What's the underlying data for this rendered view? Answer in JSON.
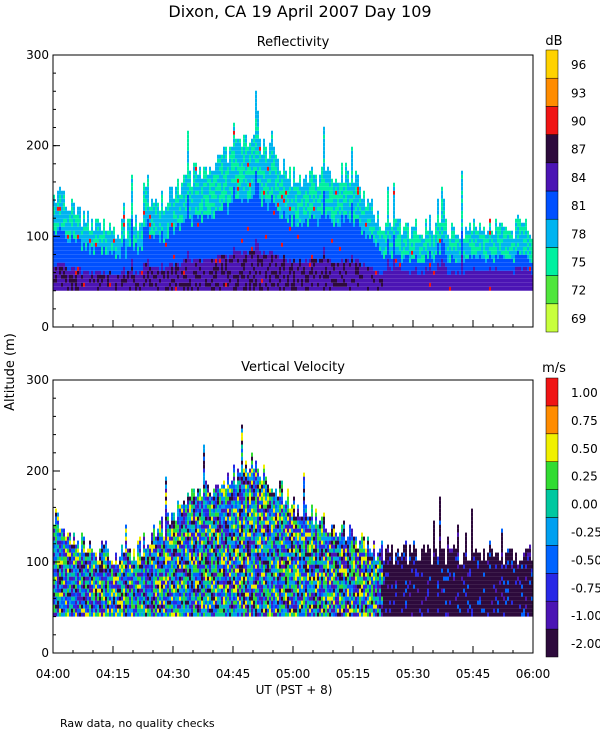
{
  "figure": {
    "title": "Dixon, CA 19 April 2007  Day 109",
    "xlabel": "UT  (PST + 8)",
    "ylabel": "Altitude (m)",
    "footnote": "Raw data, no quality checks"
  },
  "chart_data": [
    {
      "type": "heatmap",
      "title": "Reflectivity",
      "xlabel": "UT  (PST + 8)",
      "ylabel": "Altitude (m)",
      "x_ticks": [
        "04:00",
        "04:15",
        "04:30",
        "04:45",
        "05:00",
        "05:15",
        "05:30",
        "05:45",
        "06:00"
      ],
      "xlim_minutes": [
        0,
        120
      ],
      "ylim": [
        0,
        300
      ],
      "y_ticks": [
        0,
        100,
        200,
        300
      ],
      "data_bottom_m": 40,
      "colorbar": {
        "units": "dB",
        "labels": [
          "69",
          "72",
          "75",
          "78",
          "81",
          "84",
          "87",
          "90",
          "93",
          "96"
        ],
        "colors": [
          "#c8ff3c",
          "#50e63c",
          "#00f0a0",
          "#00b4f0",
          "#0050ff",
          "#4b14b4",
          "#2d0a3c",
          "#f01414",
          "#ff8c00",
          "#ffd200"
        ]
      },
      "echo_top_profile_m": [
        {
          "minutes": 0,
          "top": 160
        },
        {
          "minutes": 10,
          "top": 120
        },
        {
          "minutes": 20,
          "top": 120
        },
        {
          "minutes": 35,
          "top": 180
        },
        {
          "minutes": 50,
          "top": 220
        },
        {
          "minutes": 60,
          "top": 175
        },
        {
          "minutes": 75,
          "top": 180
        },
        {
          "minutes": 82,
          "top": 120
        },
        {
          "minutes": 120,
          "top": 120
        }
      ]
    },
    {
      "type": "heatmap",
      "title": "Vertical Velocity",
      "xlabel": "UT  (PST + 8)",
      "ylabel": "Altitude (m)",
      "x_ticks": [
        "04:00",
        "04:15",
        "04:30",
        "04:45",
        "05:00",
        "05:15",
        "05:30",
        "05:45",
        "06:00"
      ],
      "xlim_minutes": [
        0,
        120
      ],
      "ylim": [
        0,
        300
      ],
      "y_ticks": [
        0,
        100,
        200,
        300
      ],
      "data_bottom_m": 40,
      "colorbar": {
        "units": "m/s",
        "labels": [
          "-2.00",
          "-1.00",
          "-0.75",
          "-0.50",
          "-0.25",
          "0.00",
          "0.25",
          "0.50",
          "0.75",
          "1.00"
        ],
        "colors": [
          "#2d0a3c",
          "#4b14b4",
          "#2828e6",
          "#0064ff",
          "#00a0f0",
          "#00c8a0",
          "#32dc32",
          "#f0f000",
          "#ff8c00",
          "#f01414"
        ]
      },
      "echo_top_profile_m": [
        {
          "minutes": 0,
          "top": 160
        },
        {
          "minutes": 10,
          "top": 120
        },
        {
          "minutes": 20,
          "top": 120
        },
        {
          "minutes": 35,
          "top": 180
        },
        {
          "minutes": 50,
          "top": 220
        },
        {
          "minutes": 60,
          "top": 170
        },
        {
          "minutes": 75,
          "top": 140
        },
        {
          "minutes": 82,
          "top": 120
        },
        {
          "minutes": 120,
          "top": 120
        }
      ]
    }
  ]
}
